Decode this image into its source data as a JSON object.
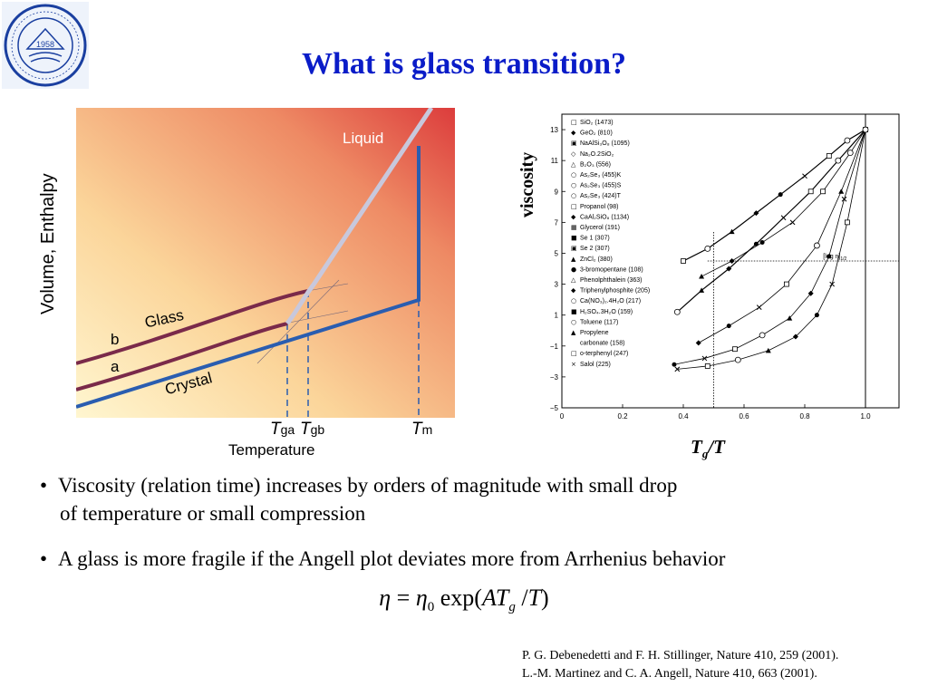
{
  "title": "What is glass transition?",
  "left_figure": {
    "ylabel": "Volume, Enthalpy",
    "xlabel": "Temperature",
    "labels": {
      "liquid": "Liquid",
      "glass": "Glass",
      "crystal": "Crystal",
      "b": "b",
      "a": "a"
    },
    "ticks": [
      {
        "main": "T",
        "sub": "ga"
      },
      {
        "main": "T",
        "sub": "gb"
      },
      {
        "main": "T",
        "sub": "m"
      }
    ],
    "colors": {
      "crystal": "#2a5db0",
      "glass": "#7a2a4a",
      "liquid": "#c8c8d8",
      "bg_light": "#fdf0c0",
      "bg_dark": "#dc3c3c"
    }
  },
  "chart_data": {
    "type": "scatter",
    "ylabel": "viscosity",
    "xlabel_main": "T",
    "xlabel_sub": "g",
    "xlabel_tail": "/T",
    "xlim": [
      0,
      1.1
    ],
    "ylim": [
      -5,
      14
    ],
    "xticks": [
      "0",
      "0.2",
      "0.4",
      "0.6",
      "0.8",
      "1.0"
    ],
    "yticks": [
      "13",
      "11",
      "9",
      "7",
      "5",
      "3",
      "1",
      "−1",
      "−3",
      "−5"
    ],
    "annotation": "[log η]",
    "annotation_sub": "1/2",
    "reference_lines": {
      "x": 0.5,
      "y": 4.5
    },
    "legend_position": "top-left",
    "legend": [
      {
        "marker": "□",
        "label": "SiO₂ (1473)"
      },
      {
        "marker": "◆",
        "label": "GeO₂ (810)"
      },
      {
        "marker": "▣",
        "label": "NaAlSi₃O₈ (1095)"
      },
      {
        "marker": "◇",
        "label": "Na₂O.2SiO₂"
      },
      {
        "marker": "△",
        "label": "B₂O₃ (556)"
      },
      {
        "marker": "○",
        "label": "As₂Se₃ (455)K"
      },
      {
        "marker": "○",
        "label": "As₂Se₃ (455)S"
      },
      {
        "marker": "○",
        "label": "As₂Se₃ (424)T"
      },
      {
        "marker": "□",
        "label": "Propanol (98)"
      },
      {
        "marker": "◆",
        "label": "CaAl₂SiO₈ (1134)"
      },
      {
        "marker": "▦",
        "label": "Glycerol (191)"
      },
      {
        "marker": "■",
        "label": "Se 1 (307)"
      },
      {
        "marker": "▣",
        "label": "Se 2 (307)"
      },
      {
        "marker": "▲",
        "label": "ZnCl₂ (380)"
      },
      {
        "marker": "●",
        "label": "3-bromopentane (108)"
      },
      {
        "marker": "△",
        "label": "Phenolphthalein (363)"
      },
      {
        "marker": "◆",
        "label": "Triphenylphosphite (205)"
      },
      {
        "marker": "○",
        "label": "Ca(NO₃)₂.4H₂O (217)"
      },
      {
        "marker": "■",
        "label": "H₂SO₄.3H₂O (159)"
      },
      {
        "marker": "○",
        "label": "Toluene (117)"
      },
      {
        "marker": "▲",
        "label": "Propylene"
      },
      {
        "marker": "",
        "label": "carbonate (158)"
      },
      {
        "marker": "□",
        "label": "o-terphenyl (247)"
      },
      {
        "marker": "×",
        "label": "Salol (225)"
      }
    ],
    "series": [
      {
        "values": [
          [
            0.4,
            4.5
          ],
          [
            0.48,
            5.3
          ],
          [
            0.56,
            6.4
          ],
          [
            0.64,
            7.6
          ],
          [
            0.72,
            8.8
          ],
          [
            0.8,
            10.0
          ],
          [
            0.88,
            11.3
          ],
          [
            0.94,
            12.3
          ],
          [
            1.0,
            13.0
          ]
        ]
      },
      {
        "values": [
          [
            0.38,
            1.2
          ],
          [
            0.46,
            2.6
          ],
          [
            0.55,
            4.0
          ],
          [
            0.64,
            5.6
          ],
          [
            0.73,
            7.3
          ],
          [
            0.82,
            9.0
          ],
          [
            0.91,
            11.0
          ],
          [
            1.0,
            13.0
          ]
        ]
      },
      {
        "values": [
          [
            0.46,
            3.5
          ],
          [
            0.56,
            4.5
          ],
          [
            0.66,
            5.7
          ],
          [
            0.76,
            7.0
          ],
          [
            0.86,
            9.0
          ],
          [
            0.95,
            11.5
          ],
          [
            1.0,
            13.0
          ]
        ]
      },
      {
        "values": [
          [
            0.45,
            -0.8
          ],
          [
            0.55,
            0.3
          ],
          [
            0.65,
            1.5
          ],
          [
            0.74,
            3.0
          ],
          [
            0.84,
            5.5
          ],
          [
            0.92,
            9.0
          ],
          [
            1.0,
            13.0
          ]
        ]
      },
      {
        "values": [
          [
            0.37,
            -2.2
          ],
          [
            0.47,
            -1.8
          ],
          [
            0.57,
            -1.2
          ],
          [
            0.66,
            -0.3
          ],
          [
            0.75,
            0.8
          ],
          [
            0.82,
            2.4
          ],
          [
            0.88,
            4.8
          ],
          [
            0.93,
            8.5
          ],
          [
            1.0,
            13.0
          ]
        ]
      },
      {
        "values": [
          [
            0.38,
            -2.5
          ],
          [
            0.48,
            -2.3
          ],
          [
            0.58,
            -1.9
          ],
          [
            0.68,
            -1.3
          ],
          [
            0.77,
            -0.4
          ],
          [
            0.84,
            1.0
          ],
          [
            0.89,
            3.0
          ],
          [
            0.94,
            7.0
          ],
          [
            1.0,
            13.0
          ]
        ]
      }
    ]
  },
  "bullets": [
    {
      "line1": "Viscosity (relation time) increases by orders of magnitude with small drop",
      "line2": "of temperature or small compression"
    },
    {
      "line1": "A glass is more fragile if the Angell plot deviates more from Arrhenius behavior"
    }
  ],
  "formula": {
    "eta": "η",
    "equals": "=",
    "eta0": "η",
    "eta0_sub": "0",
    "exp": "exp(",
    "A": "A",
    "T1": "T",
    "g": "g",
    "slash": "/",
    "T2": "T",
    "close": ")"
  },
  "references": [
    "P. G. Debenedetti and F. H. Stillinger, Nature 410, 259 (2001).",
    "L.-M. Martinez and C. A. Angell, Nature 410, 663 (2001)."
  ],
  "logo": {
    "year": "1958"
  }
}
